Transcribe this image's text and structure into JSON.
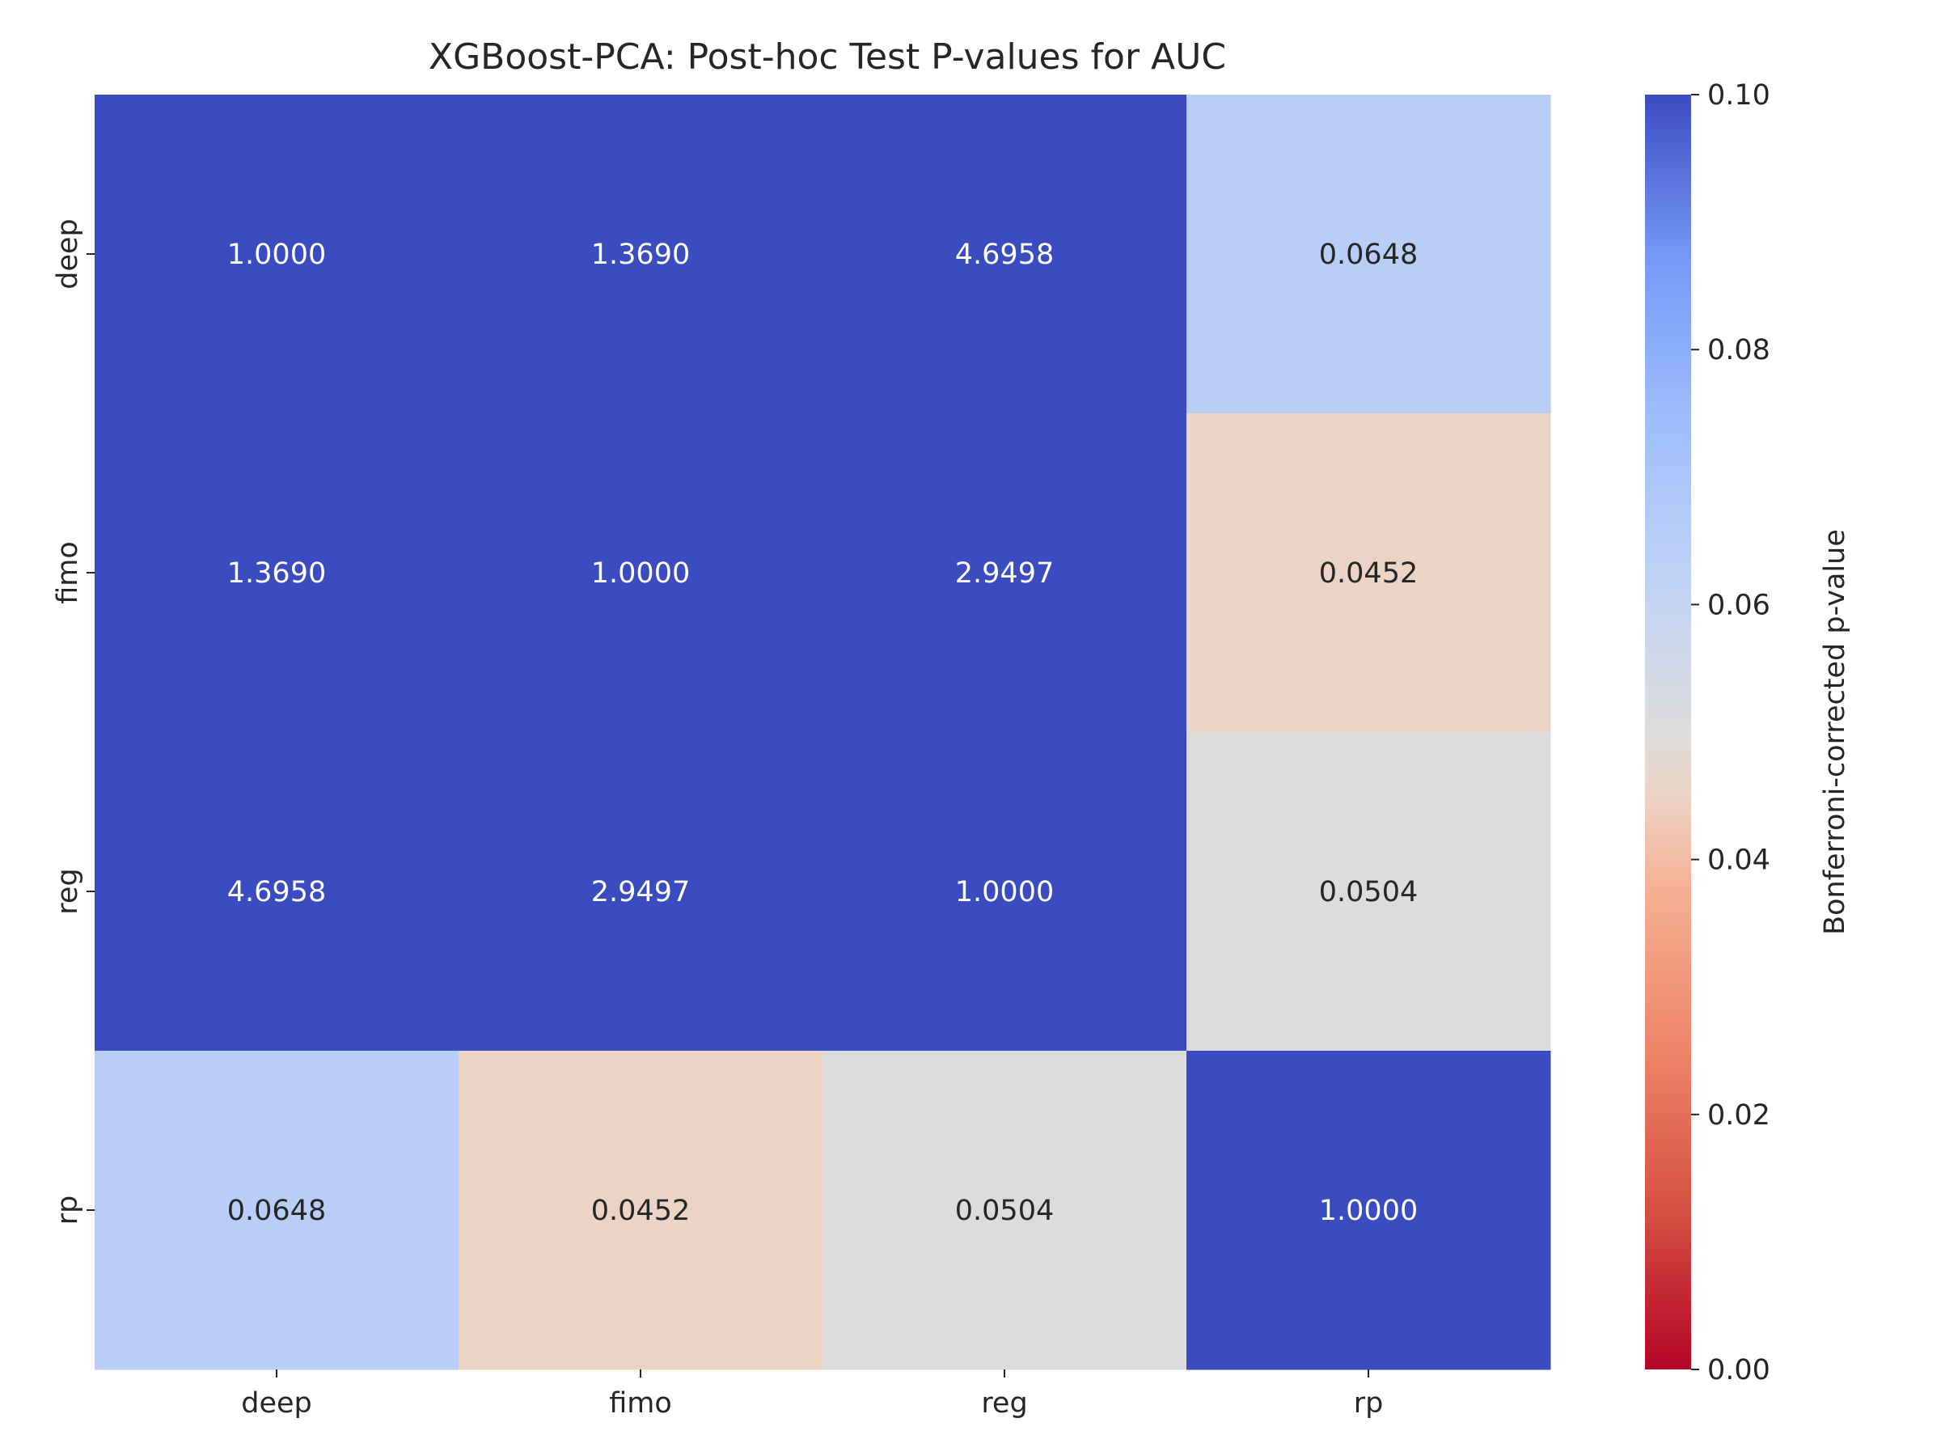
{
  "chart_data": {
    "type": "heatmap",
    "title": "XGBoost-PCA: Post-hoc Test P-values for AUC",
    "x_categories": [
      "deep",
      "fimo",
      "reg",
      "rp"
    ],
    "y_categories": [
      "deep",
      "fimo",
      "reg",
      "rp"
    ],
    "values": [
      [
        1.0,
        1.369,
        4.6958,
        0.0648
      ],
      [
        1.369,
        1.0,
        2.9497,
        0.0452
      ],
      [
        4.6958,
        2.9497,
        1.0,
        0.0504
      ],
      [
        0.0648,
        0.0452,
        0.0504,
        1.0
      ]
    ],
    "value_format": "4 decimals",
    "colormap": "coolwarm_r",
    "vmin": 0.0,
    "vmax": 0.1,
    "colorbar": {
      "label": "Bonferroni-corrected p-value",
      "ticks": [
        "0.00",
        "0.02",
        "0.04",
        "0.06",
        "0.08",
        "0.10"
      ]
    },
    "colors": {
      "high": "#3b4cc0",
      "mid": "#dddcdc",
      "low": "#b40426",
      "text_on_dark": "#ffffff",
      "text_on_light": "#262626"
    }
  }
}
